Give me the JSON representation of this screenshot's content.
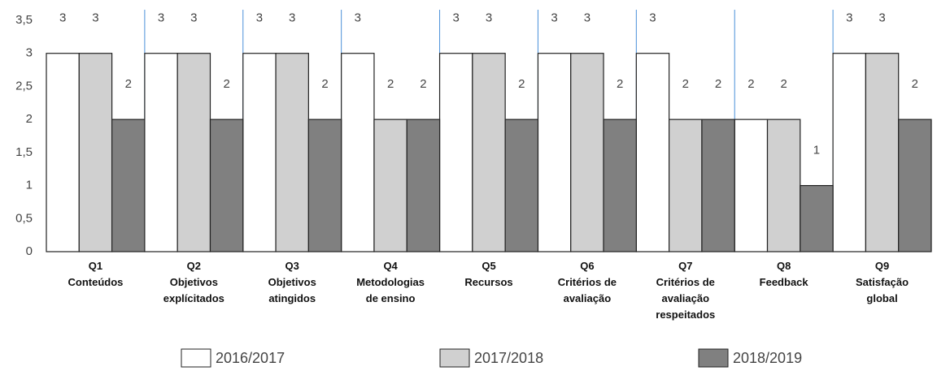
{
  "chart_data": {
    "type": "bar",
    "categories": [
      "Q1\nConteúdos",
      "Q2\nObjetivos\nexplícitados",
      "Q3\nObjetivos\natingidos",
      "Q4\nMetodologias\nde ensino",
      "Q5\nRecursos",
      "Q6\nCritérios de\navaliação",
      "Q7\nCritérios de\navaliação\nrespeitados",
      "Q8\nFeedback",
      "Q9\nSatisfação\nglobal"
    ],
    "series": [
      {
        "name": "2016/2017",
        "color": "#ffffff",
        "values": [
          3,
          3,
          3,
          3,
          3,
          3,
          3,
          2,
          3
        ]
      },
      {
        "name": "2017/2018",
        "color": "#d0d0d0",
        "values": [
          3,
          3,
          3,
          2,
          3,
          3,
          2,
          2,
          3
        ]
      },
      {
        "name": "2018/2019",
        "color": "#808080",
        "values": [
          2,
          2,
          2,
          2,
          2,
          2,
          2,
          1,
          2
        ]
      }
    ],
    "ylim": [
      0,
      3.5
    ],
    "yticks": [
      0,
      {
        "value": 0.5,
        "label": "0,5"
      },
      1,
      {
        "value": 1.5,
        "label": "1,5"
      },
      2,
      {
        "value": 2.5,
        "label": "2,5"
      },
      3,
      {
        "value": 3.5,
        "label": "3,5"
      }
    ],
    "legend": "bottom"
  }
}
